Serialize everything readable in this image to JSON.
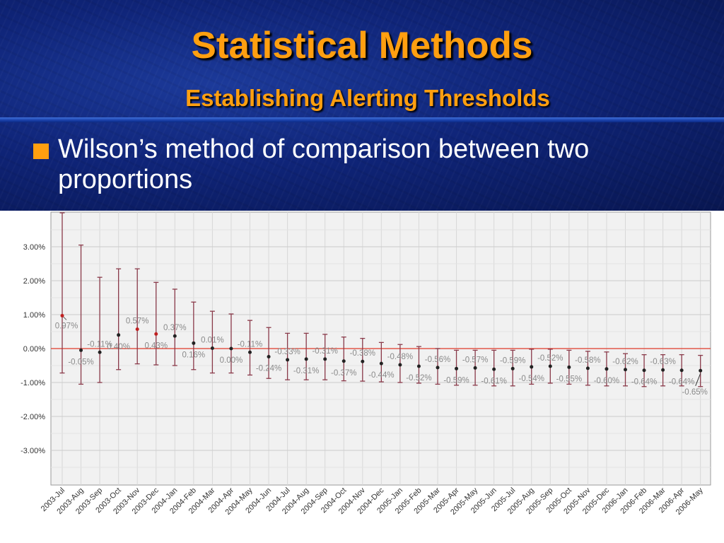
{
  "slide": {
    "title": "Statistical Methods",
    "subtitle": "Establishing Alerting Thresholds",
    "bullet": "Wilson’s method of comparison between two proportions"
  },
  "colors": {
    "title": "#ff9f10",
    "background": "#0f2478",
    "zero_line": "#e03a2a",
    "error_bar": "#8a3a4a",
    "point": "#222222",
    "point_highlight": "#c02020"
  },
  "chart_data": {
    "type": "scatter",
    "title": "",
    "xlabel": "",
    "ylabel": "",
    "ylim": [
      -4.0,
      4.0
    ],
    "yticks": [
      3.0,
      2.0,
      1.0,
      0.0,
      -1.0,
      -2.0,
      -3.0
    ],
    "ytick_labels": [
      "3.00%",
      "2.00%",
      "1.00%",
      "0.00%",
      "-1.00%",
      "-2.00%",
      "-3.00%"
    ],
    "grid": true,
    "reference_line": 0.0,
    "categories": [
      "2003-Jul",
      "2003-Aug",
      "2003-Sep",
      "2003-Oct",
      "2003-Nov",
      "2003-Dec",
      "2004-Jan",
      "2004-Feb",
      "2004-Mar",
      "2004-Apr",
      "2004-May",
      "2004-Jun",
      "2004-Jul",
      "2004-Aug",
      "2004-Sep",
      "2004-Oct",
      "2004-Nov",
      "2004-Dec",
      "2005-Jan",
      "2005-Feb",
      "2005-Mar",
      "2005-Apr",
      "2005-May",
      "2005-Jun",
      "2005-Jul",
      "2005-Aug",
      "2005-Sep",
      "2005-Oct",
      "2005-Nov",
      "2005-Dec",
      "2006-Jan",
      "2006-Feb",
      "2006-Mar",
      "2006-Apr",
      "2006-May"
    ],
    "values": [
      0.97,
      -0.05,
      -0.11,
      0.4,
      0.57,
      0.43,
      0.37,
      0.16,
      0.01,
      0.0,
      -0.11,
      -0.24,
      -0.33,
      -0.31,
      -0.31,
      -0.37,
      -0.38,
      -0.44,
      -0.48,
      -0.52,
      -0.56,
      -0.59,
      -0.57,
      -0.61,
      -0.59,
      -0.54,
      -0.52,
      -0.55,
      -0.58,
      -0.6,
      -0.62,
      -0.64,
      -0.63,
      -0.64,
      -0.65
    ],
    "labels": [
      "0.97%",
      "-0.05%",
      "-0.11%",
      "0.40%",
      "0.57%",
      "0.43%",
      "0.37%",
      "0.16%",
      "0.01%",
      "0.00%",
      "-0.11%",
      "-0.24%",
      "-0.33%",
      "-0.31%",
      "-0.31%",
      "-0.37%",
      "-0.38%",
      "-0.44%",
      "-0.48%",
      "-0.52%",
      "-0.56%",
      "-0.59%",
      "-0.57%",
      "-0.61%",
      "-0.59%",
      "-0.54%",
      "-0.52%",
      "-0.55%",
      "-0.58%",
      "-0.60%",
      "-0.62%",
      "-0.64%",
      "-0.63%",
      "-0.64%",
      "-0.65%"
    ],
    "ci_upper": [
      4.0,
      3.05,
      2.1,
      2.35,
      2.35,
      1.95,
      1.75,
      1.37,
      1.1,
      1.02,
      0.83,
      0.62,
      0.45,
      0.45,
      0.42,
      0.34,
      0.3,
      0.18,
      0.12,
      0.06,
      0.0,
      -0.05,
      -0.05,
      -0.05,
      -0.05,
      -0.02,
      -0.02,
      -0.05,
      -0.08,
      -0.1,
      -0.15,
      -0.18,
      -0.18,
      -0.18,
      -0.2
    ],
    "ci_lower": [
      -0.72,
      -1.05,
      -1.0,
      -0.62,
      -0.45,
      -0.48,
      -0.5,
      -0.62,
      -0.72,
      -0.72,
      -0.78,
      -0.88,
      -0.92,
      -0.92,
      -0.92,
      -0.95,
      -0.96,
      -0.98,
      -1.0,
      -1.02,
      -1.05,
      -1.08,
      -1.08,
      -1.1,
      -1.1,
      -1.05,
      -1.02,
      -1.05,
      -1.08,
      -1.1,
      -1.1,
      -1.12,
      -1.1,
      -1.1,
      -1.12
    ]
  }
}
